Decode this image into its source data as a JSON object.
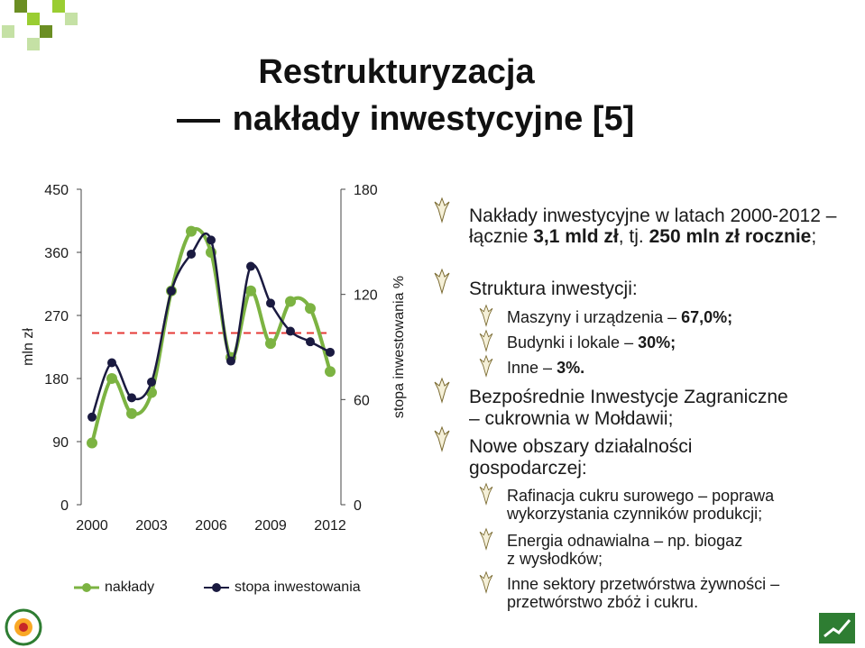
{
  "title": {
    "line1": "Restrukturyzacja",
    "line2": "nakłady inwestycyjne [5]"
  },
  "chart_data": {
    "type": "line",
    "x": [
      2000,
      2001,
      2002,
      2003,
      2004,
      2005,
      2006,
      2007,
      2008,
      2009,
      2010,
      2011,
      2012
    ],
    "series": [
      {
        "name": "nakłady",
        "axis": "left",
        "color": "#7cb342",
        "values": [
          88,
          180,
          130,
          160,
          305,
          390,
          360,
          210,
          305,
          230,
          290,
          280,
          190
        ]
      },
      {
        "name": "stopa inwestowania",
        "axis": "right",
        "color": "#1a1a40",
        "values": [
          50,
          81,
          61,
          70,
          122,
          143,
          151,
          82,
          136,
          115,
          99,
          93,
          87
        ]
      }
    ],
    "ylabel_left": "mln zł",
    "ylabel_right": "stopa inwestowania %",
    "yticks_left": [
      "450",
      "360",
      "270",
      "180",
      "90",
      "0"
    ],
    "yticks_right": [
      "180",
      "120",
      "60",
      "0"
    ],
    "xticks": [
      "2000",
      "2003",
      "2006",
      "2009",
      "2012"
    ],
    "ylim_left": [
      0,
      450
    ],
    "ylim_right": [
      0,
      180
    ],
    "reference_line": {
      "value": 245,
      "axis": "left",
      "color": "#e53935",
      "style": "dashed"
    },
    "legend_position": "bottom"
  },
  "legend": {
    "items": [
      "nakłady",
      "stopa inwestowania"
    ]
  },
  "content": {
    "b1": "Nakłady inwestycyjne w latach 2000-2012 – łącznie",
    "b1_bold1": "3,1 mld zł",
    "b1_mid": ", tj.",
    "b1_bold2": "250 mln zł rocznie",
    "b1_end": ";",
    "b2": "Struktura inwestycji:",
    "s1": "Maszyny i urządzenia –",
    "s1_val": "67,0%;",
    "s2": "Budynki i lokale –",
    "s2_val": "30%;",
    "s3": "Inne –",
    "s3_val": "3%.",
    "b3_line1": "Bezpośrednie Inwestycje Zagraniczne",
    "b3_line2": "– cukrownia w Mołdawii;",
    "b4_line1": "Nowe obszary działalności",
    "b4_line2": "gospodarczej:",
    "s4_line1": "Rafinacja cukru surowego – poprawa",
    "s4_line2": "wykorzystania czynników produkcji;",
    "s5_line1": "Energia odnawialna – np. biogaz",
    "s5_line2": "z wysłodków;",
    "s6_line1": "Inne sektory przetwórstwa żywności –",
    "s6_line2": "przetwórstwo zbóż i cukru."
  },
  "logos": {
    "left_text": "PROGRAM WIELOLETNI 2011-2014"
  },
  "colors": {
    "green": "#7cb342",
    "dark": "#1a1a40",
    "accent": "#e53935"
  }
}
